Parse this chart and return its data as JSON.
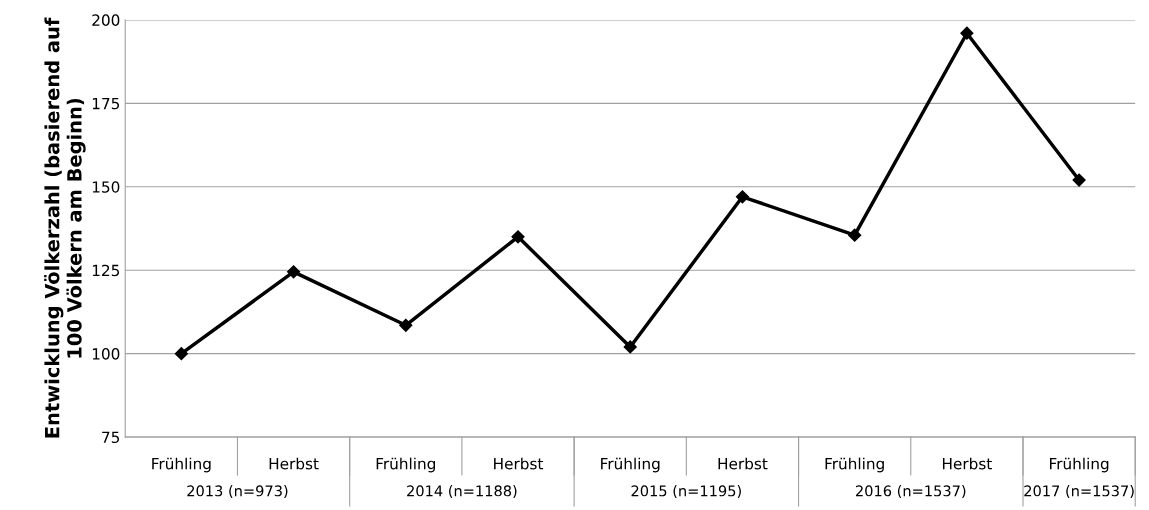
{
  "chart_data": {
    "type": "line",
    "ylabel": "Entwicklung Völkerzahl (basierend auf\n100 Völkern am Beginn)",
    "categories": [
      "Frühling",
      "Herbst",
      "Frühling",
      "Herbst",
      "Frühling",
      "Herbst",
      "Frühling",
      "Herbst",
      "Frühling"
    ],
    "series": [
      {
        "color": "#000000",
        "values": [
          100,
          124.5,
          108.5,
          135,
          102,
          147,
          135.5,
          196,
          152
        ]
      }
    ],
    "annotations": [
      "2013 (n=973)",
      "2014 (n=1188)",
      "2015 (n=1195)",
      "2016 (n=1537)",
      "2017 (n=1537)"
    ],
    "ylim": [
      75,
      200
    ],
    "yticks": [
      75,
      100,
      125,
      150,
      175,
      200
    ],
    "grid": "y",
    "marker": "diamond",
    "line_style": "solid",
    "legend": false
  }
}
